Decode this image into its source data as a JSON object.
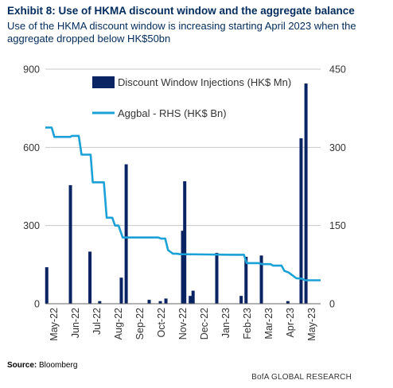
{
  "title": "Exhibit 8: Use of HKMA discount window and the aggregate balance",
  "subtitle": "Use of the HKMA discount window is increasing starting April 2023 when the aggregate  dropped below HK$50bn",
  "source_label": "Source:",
  "source_text": "Bloomberg",
  "credit": "BofA GLOBAL RESEARCH",
  "colors": {
    "bars": "#0a2463",
    "line": "#1ba1d8",
    "grid": "#c8c8c8"
  },
  "chart_data": {
    "type": "bar+line",
    "x_tick_labels": [
      "May-22",
      "Jun-22",
      "Jul-22",
      "Aug-22",
      "Sep-22",
      "Oct-22",
      "Nov-22",
      "Dec-22",
      "Jan-23",
      "Feb-23",
      "Mar-23",
      "Apr-23",
      "May-23"
    ],
    "x_range": [
      "2022-05-01",
      "2023-05-31"
    ],
    "left_axis": {
      "ylim": [
        0,
        900
      ],
      "ticks": [
        0,
        300,
        600,
        900
      ]
    },
    "right_axis": {
      "ylim": [
        0,
        450
      ],
      "ticks": [
        0,
        150,
        300,
        450
      ]
    },
    "grid": true,
    "legend_placement": "top-center",
    "series": [
      {
        "name": "Discount Window Injections (HK$ Mn)",
        "kind": "bar",
        "axis": "left",
        "points": [
          {
            "x": "2022-05-03",
            "y": 140
          },
          {
            "x": "2022-06-06",
            "y": 455
          },
          {
            "x": "2022-07-04",
            "y": 200
          },
          {
            "x": "2022-07-18",
            "y": 10
          },
          {
            "x": "2022-08-18",
            "y": 100
          },
          {
            "x": "2022-08-25",
            "y": 535
          },
          {
            "x": "2022-09-27",
            "y": 15
          },
          {
            "x": "2022-10-13",
            "y": 10
          },
          {
            "x": "2022-10-21",
            "y": 20
          },
          {
            "x": "2022-11-14",
            "y": 280
          },
          {
            "x": "2022-11-17",
            "y": 470
          },
          {
            "x": "2022-11-25",
            "y": 30
          },
          {
            "x": "2022-11-29",
            "y": 50
          },
          {
            "x": "2023-01-02",
            "y": 195
          },
          {
            "x": "2023-02-06",
            "y": 30
          },
          {
            "x": "2023-02-13",
            "y": 180
          },
          {
            "x": "2023-03-07",
            "y": 185
          },
          {
            "x": "2023-04-14",
            "y": 10
          },
          {
            "x": "2023-05-03",
            "y": 635
          },
          {
            "x": "2023-05-10",
            "y": 845
          }
        ]
      },
      {
        "name": "Aggbal - RHS (HK$ Bn)",
        "kind": "line",
        "axis": "right",
        "points": [
          {
            "x": "2022-05-01",
            "y": 338
          },
          {
            "x": "2022-05-10",
            "y": 338
          },
          {
            "x": "2022-05-14",
            "y": 320
          },
          {
            "x": "2022-06-06",
            "y": 320
          },
          {
            "x": "2022-06-08",
            "y": 322
          },
          {
            "x": "2022-06-18",
            "y": 322
          },
          {
            "x": "2022-06-22",
            "y": 286
          },
          {
            "x": "2022-07-05",
            "y": 286
          },
          {
            "x": "2022-07-08",
            "y": 233
          },
          {
            "x": "2022-07-24",
            "y": 233
          },
          {
            "x": "2022-07-28",
            "y": 165
          },
          {
            "x": "2022-08-05",
            "y": 165
          },
          {
            "x": "2022-08-09",
            "y": 150
          },
          {
            "x": "2022-08-14",
            "y": 150
          },
          {
            "x": "2022-08-20",
            "y": 127
          },
          {
            "x": "2022-10-10",
            "y": 127
          },
          {
            "x": "2022-10-14",
            "y": 125
          },
          {
            "x": "2022-10-20",
            "y": 125
          },
          {
            "x": "2022-10-24",
            "y": 103
          },
          {
            "x": "2022-10-31",
            "y": 96
          },
          {
            "x": "2022-11-06",
            "y": 96
          },
          {
            "x": "2022-11-10",
            "y": 95
          },
          {
            "x": "2023-01-24",
            "y": 94
          },
          {
            "x": "2023-02-10",
            "y": 94
          },
          {
            "x": "2023-02-14",
            "y": 78
          },
          {
            "x": "2023-03-03",
            "y": 78
          },
          {
            "x": "2023-03-08",
            "y": 76
          },
          {
            "x": "2023-03-20",
            "y": 76
          },
          {
            "x": "2023-03-24",
            "y": 73
          },
          {
            "x": "2023-04-05",
            "y": 73
          },
          {
            "x": "2023-04-09",
            "y": 63
          },
          {
            "x": "2023-04-15",
            "y": 60
          },
          {
            "x": "2023-04-20",
            "y": 55
          },
          {
            "x": "2023-04-26",
            "y": 49
          },
          {
            "x": "2023-05-04",
            "y": 48
          },
          {
            "x": "2023-05-09",
            "y": 45
          },
          {
            "x": "2023-05-31",
            "y": 45
          }
        ]
      }
    ]
  }
}
